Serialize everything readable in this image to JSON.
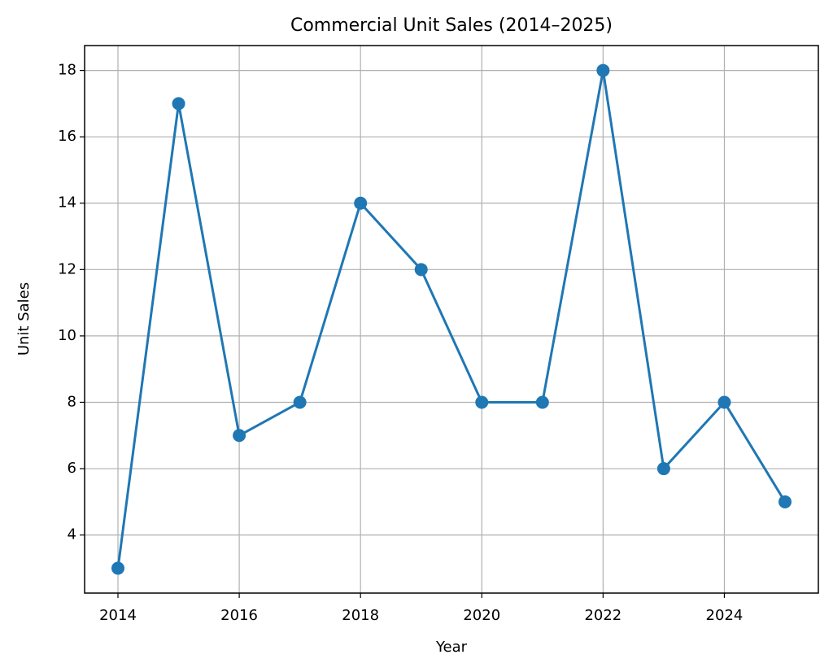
{
  "chart_data": {
    "type": "line",
    "title": "Commercial Unit Sales (2014–2025)",
    "x_label": "Year",
    "y_label": "Unit Sales",
    "x": [
      2014,
      2015,
      2016,
      2017,
      2018,
      2019,
      2020,
      2021,
      2022,
      2023,
      2024,
      2025
    ],
    "series": [
      {
        "name": "Unit Sales",
        "color": "#1f77b4",
        "values": [
          3,
          17,
          7,
          8,
          14,
          12,
          8,
          8,
          18,
          6,
          8,
          5
        ]
      }
    ],
    "xlim": [
      2013.45,
      2025.55
    ],
    "xticks": [
      2014,
      2016,
      2018,
      2020,
      2022,
      2024
    ],
    "ylim": [
      2.25,
      18.75
    ],
    "yticks": [
      4,
      6,
      8,
      10,
      12,
      14,
      16,
      18
    ],
    "grid": true,
    "markers": true
  }
}
